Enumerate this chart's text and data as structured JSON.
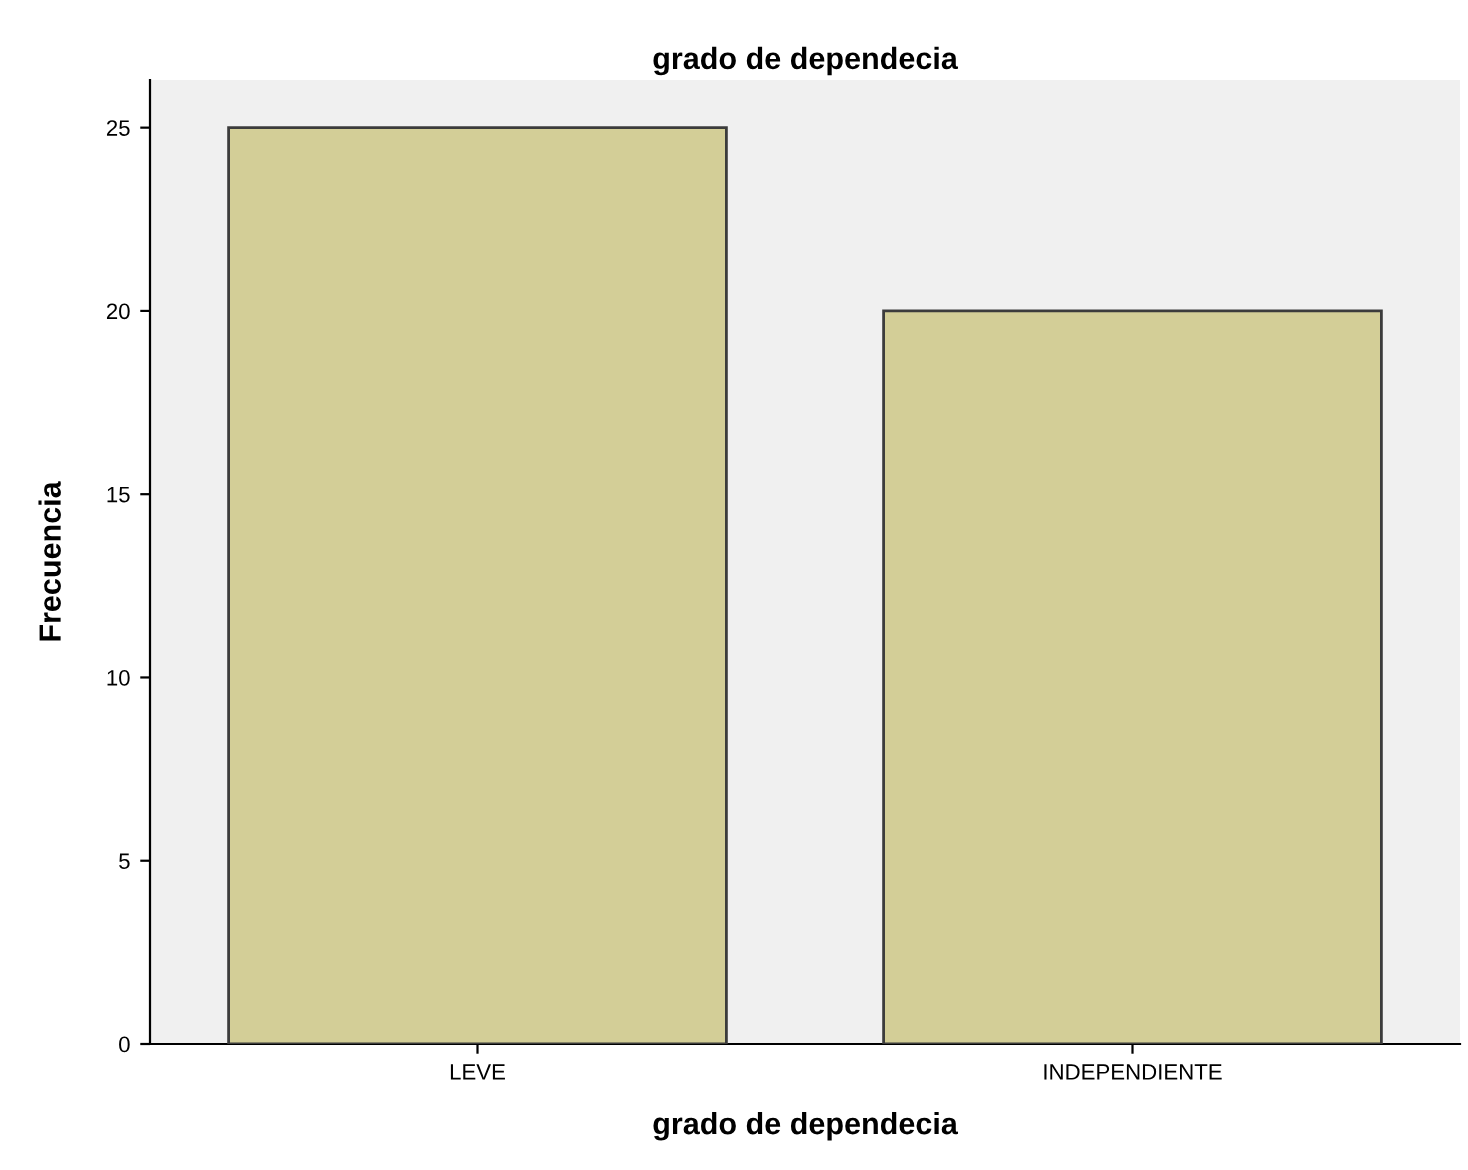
{
  "chart_data": {
    "type": "bar",
    "title": "grado de dependecia",
    "xlabel": "grado de dependecia",
    "ylabel": "Frecuencia",
    "categories": [
      "LEVE",
      "INDEPENDIENTE"
    ],
    "values": [
      25,
      20
    ],
    "color": "#d3ce97",
    "ylim": [
      0,
      26.3
    ],
    "yticks": [
      0,
      5,
      10,
      15,
      20,
      25
    ],
    "grid": false,
    "legend": false
  }
}
